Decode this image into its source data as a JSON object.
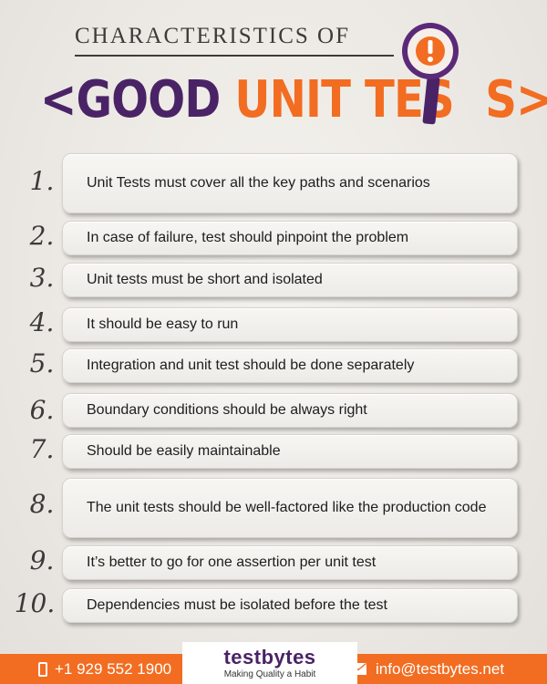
{
  "header": {
    "subtitle": "CHARACTERISTICS OF",
    "title_open": "<",
    "title_good": "GOOD",
    "title_unit": "UNIT TES",
    "title_close": "S>"
  },
  "items": [
    {
      "number": "1.",
      "text": "Unit Tests must cover all the key paths and scenarios"
    },
    {
      "number": "2.",
      "text": "In case of failure, test should pinpoint the problem"
    },
    {
      "number": "3.",
      "text": "Unit tests must be short and isolated"
    },
    {
      "number": "4.",
      "text": "It should be easy to run"
    },
    {
      "number": "5.",
      "text": "Integration and unit test should be done separately"
    },
    {
      "number": "6.",
      "text": "Boundary conditions should be always right"
    },
    {
      "number": "7.",
      "text": "Should be easily maintainable"
    },
    {
      "number": "8.",
      "text": "The unit tests should be well-factored like the production code"
    },
    {
      "number": "9.",
      "text": "It’s better to go for one assertion per unit test"
    },
    {
      "number": "10.",
      "text": "Dependencies must be isolated before the test"
    }
  ],
  "footer": {
    "phone": "+1 929 552 1900",
    "logo_name": "testbytes",
    "logo_tagline": "Making Quality a Habit",
    "email": "info@testbytes.net"
  },
  "colors": {
    "orange": "#f26d21",
    "purple": "#4a2366",
    "background": "#ebe8e3"
  },
  "icons": [
    "exclamation-icon",
    "magnifier-icon",
    "phone-icon",
    "mail-icon"
  ]
}
